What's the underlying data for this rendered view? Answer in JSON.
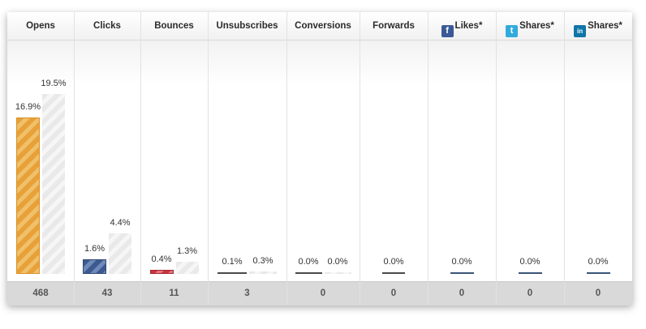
{
  "columns": [
    {
      "label": "Opens",
      "icon": null,
      "total": "468"
    },
    {
      "label": "Clicks",
      "icon": null,
      "total": "43"
    },
    {
      "label": "Bounces",
      "icon": null,
      "total": "11"
    },
    {
      "label": "Unsubscribes",
      "icon": null,
      "total": "3"
    },
    {
      "label": "Conversions",
      "icon": null,
      "total": "0"
    },
    {
      "label": "Forwards",
      "icon": null,
      "total": "0"
    },
    {
      "label": "Likes*",
      "icon": "facebook-icon",
      "total": "0"
    },
    {
      "label": "Shares*",
      "icon": "twitter-icon",
      "total": "0"
    },
    {
      "label": "Shares*",
      "icon": "linkedin-icon",
      "total": "0"
    }
  ],
  "colors": {
    "opens": "#e8a139",
    "clicks": "#3b5a8f",
    "bounces": "#c8353f",
    "comparison": "#e9e9e9",
    "facebook": "#3b5998",
    "twitter": "#33aadd",
    "linkedin": "#0e76a8"
  },
  "chart_data": {
    "type": "bar",
    "categories": [
      "Opens",
      "Clicks",
      "Bounces",
      "Unsubscribes",
      "Conversions",
      "Forwards",
      "Likes*",
      "Shares*",
      "Shares*"
    ],
    "series": [
      {
        "values": [
          16.9,
          1.6,
          0.4,
          0.1,
          0.0,
          0.0,
          0.0,
          0.0,
          0.0
        ],
        "labels": [
          "16.9%",
          "1.6%",
          "0.4%",
          "0.1%",
          "0.0%",
          "0.0%",
          "0.0%",
          "0.0%",
          "0.0%"
        ]
      },
      {
        "values": [
          19.5,
          4.4,
          1.3,
          0.3,
          0.0,
          null,
          null,
          null,
          null
        ],
        "labels": [
          "19.5%",
          "4.4%",
          "1.3%",
          "0.3%",
          "0.0%",
          null,
          null,
          null,
          null
        ]
      }
    ],
    "totals": [
      "468",
      "43",
      "11",
      "3",
      "0",
      "0",
      "0",
      "0",
      "0"
    ],
    "ylim": [
      0,
      21
    ],
    "grid": false,
    "legend": "none"
  }
}
